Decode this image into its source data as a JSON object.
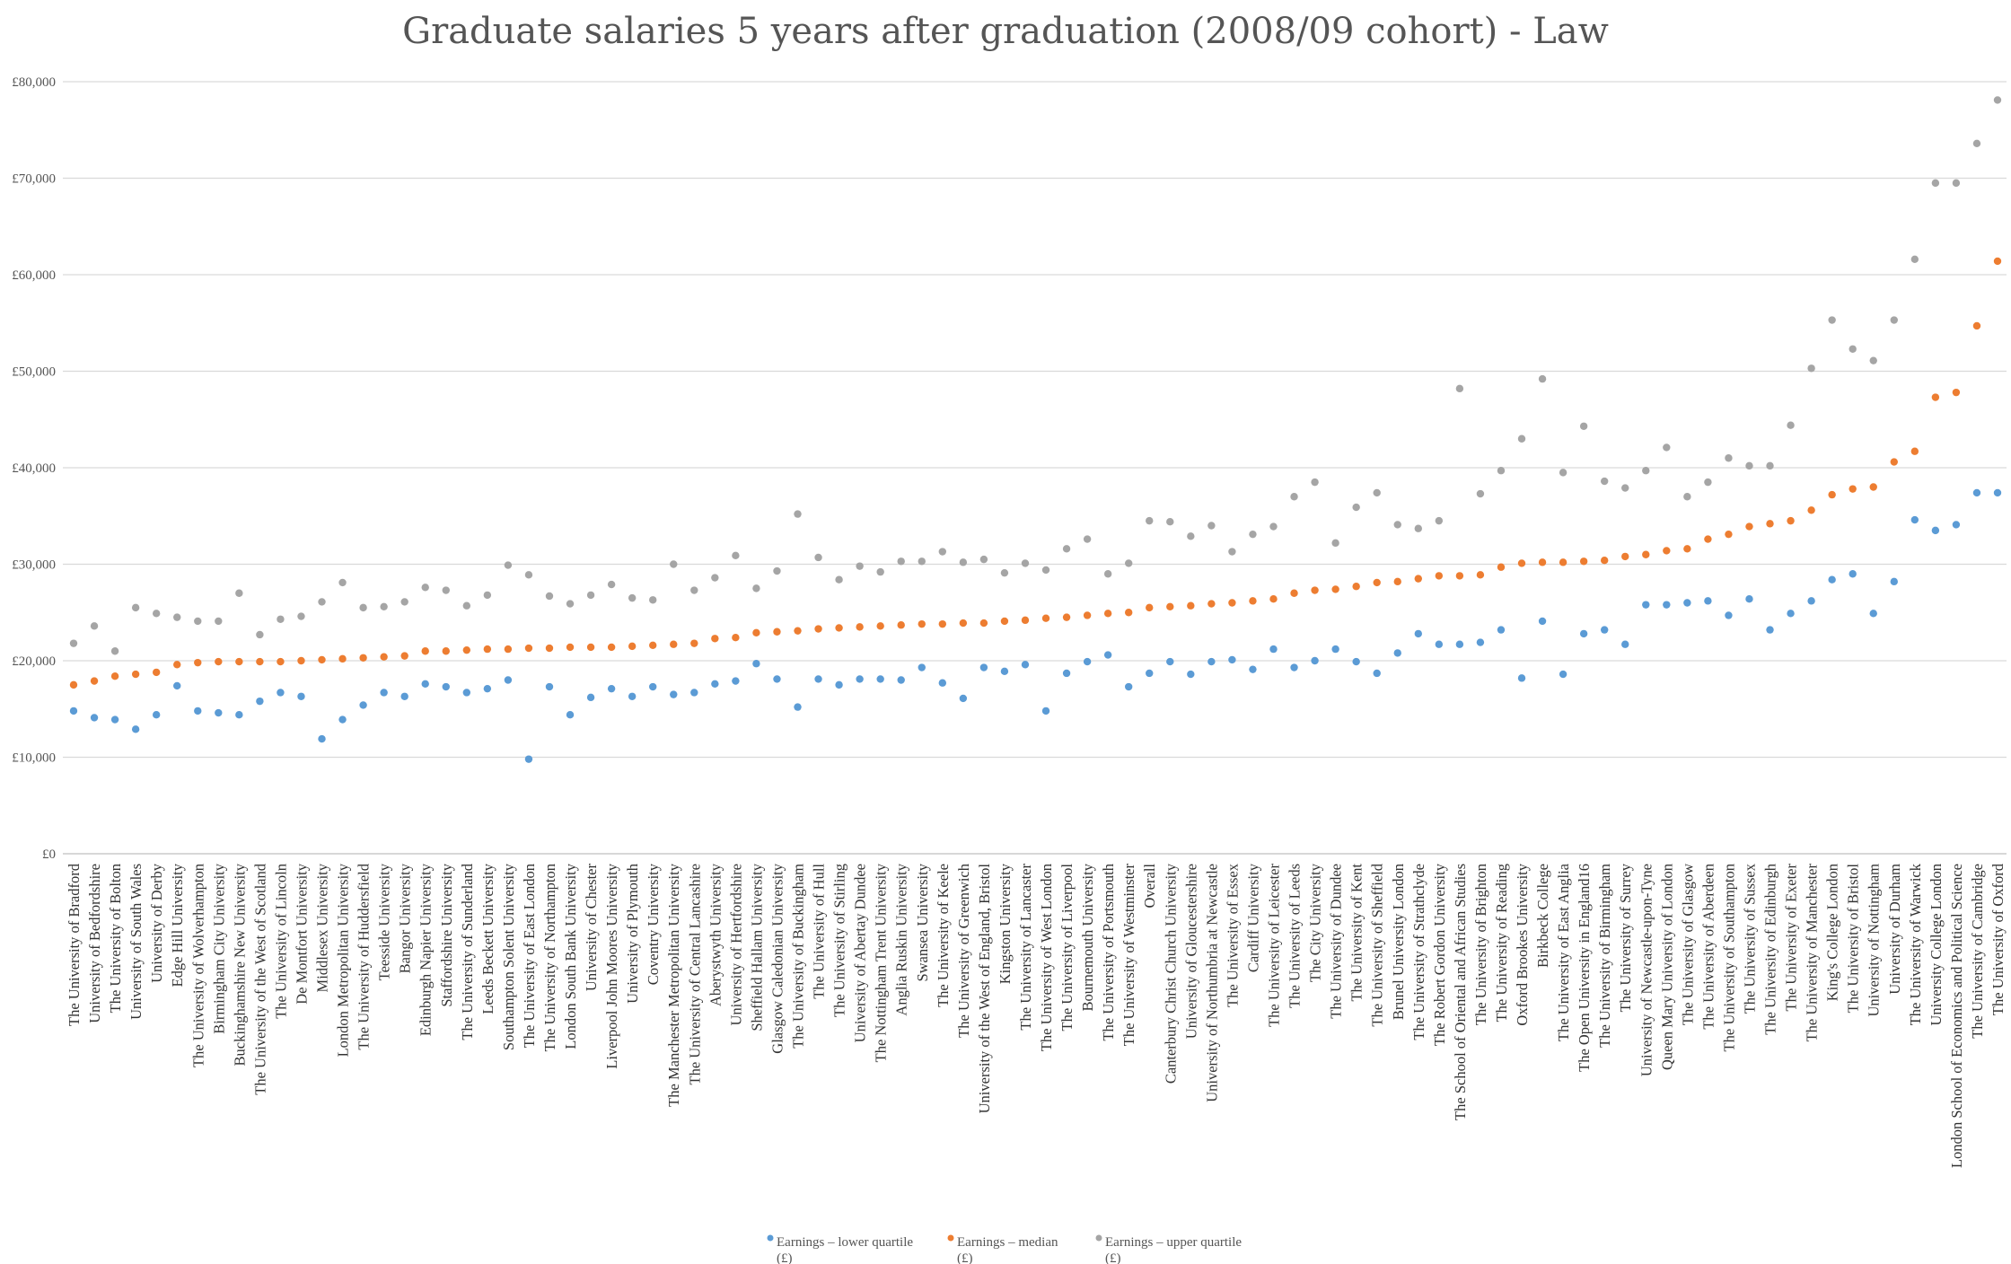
{
  "chart_data": {
    "type": "scatter",
    "title": "Graduate salaries 5 years after graduation (2008/09 cohort) - Law",
    "xlabel": "",
    "ylabel": "",
    "ylim": [
      0,
      80000
    ],
    "yticks": [
      0,
      10000,
      20000,
      30000,
      40000,
      50000,
      60000,
      70000,
      80000
    ],
    "ytick_labels": [
      "£0",
      "£10,000",
      "£20,000",
      "£30,000",
      "£40,000",
      "£50,000",
      "£60,000",
      "£70,000",
      "£80,000"
    ],
    "grid": true,
    "legend_position": "bottom",
    "categories": [
      "The University of Bradford",
      "University of Bedfordshire",
      "The University of Bolton",
      "University of South Wales",
      "University of Derby",
      "Edge Hill University",
      "The University of Wolverhampton",
      "Birmingham City University",
      "Buckinghamshire New University",
      "The University of the West of Scotland",
      "The University of Lincoln",
      "De Montfort University",
      "Middlesex University",
      "London Metropolitan University",
      "The University of Huddersfield",
      "Teesside University",
      "Bangor University",
      "Edinburgh Napier University",
      "Staffordshire University",
      "The University of Sunderland",
      "Leeds Beckett University",
      "Southampton Solent University",
      "The University of East London",
      "The University of Northampton",
      "London South Bank University",
      "University of Chester",
      "Liverpool John Moores University",
      "University of Plymouth",
      "Coventry University",
      "The Manchester Metropolitan University",
      "The University of Central Lancashire",
      "Aberystwyth University",
      "University of Hertfordshire",
      "Sheffield Hallam University",
      "Glasgow Caledonian University",
      "The University of Buckingham",
      "The University of Hull",
      "The University of Stirling",
      "University of Abertay Dundee",
      "The Nottingham Trent University",
      "Anglia Ruskin University",
      "Swansea University",
      "The University of Keele",
      "The University of Greenwich",
      "University of the West of England, Bristol",
      "Kingston University",
      "The University of Lancaster",
      "The University of West London",
      "The University of Liverpool",
      "Bournemouth University",
      "The University of Portsmouth",
      "The University of Westminster",
      "Overall",
      "Canterbury Christ Church University",
      "University of Gloucestershire",
      "University of Northumbria at Newcastle",
      "The University of Essex",
      "Cardiff University",
      "The University of Leicester",
      "The University of Leeds",
      "The City University",
      "The University of Dundee",
      "The University of Kent",
      "The University of Sheffield",
      "Brunel University London",
      "The University of Strathclyde",
      "The Robert Gordon University",
      "The School of Oriental and African Studies",
      "The University of Brighton",
      "The University of Reading",
      "Oxford Brookes University",
      "Birkbeck College",
      "The University of East Anglia",
      "The Open University in England16",
      "The University of Birmingham",
      "The University of Surrey",
      "University of Newcastle-upon-Tyne",
      "Queen Mary University of London",
      "The University of Glasgow",
      "The University of Aberdeen",
      "The University of Southampton",
      "The University of Sussex",
      "The University of Edinburgh",
      "The University of Exeter",
      "The University of Manchester",
      "King's College London",
      "The University of Bristol",
      "University of Nottingham",
      "University of Durham",
      "The University of Warwick",
      "University College London",
      "London School of Economics and Political Science",
      "The University of Cambridge",
      "The University of Oxford"
    ],
    "series": [
      {
        "name": "Earnings – lower quartile (£)",
        "color": "#5b9bd5",
        "values": [
          14800,
          14100,
          13900,
          12900,
          14400,
          17400,
          14800,
          14600,
          14400,
          15800,
          16700,
          16300,
          11900,
          13900,
          15400,
          16700,
          16300,
          17600,
          17300,
          16700,
          17100,
          18000,
          9800,
          17300,
          14400,
          16200,
          17100,
          16300,
          17300,
          16500,
          16700,
          17600,
          17900,
          19700,
          18100,
          15200,
          18100,
          17500,
          18100,
          18100,
          18000,
          19300,
          17700,
          16100,
          19300,
          18900,
          19600,
          14800,
          18700,
          19900,
          20600,
          17300,
          18700,
          19900,
          18600,
          19900,
          20100,
          19100,
          21200,
          19300,
          20000,
          21200,
          19900,
          18700,
          20800,
          22800,
          21700,
          21700,
          21900,
          23200,
          18200,
          24100,
          18600,
          22800,
          23200,
          21700,
          25800,
          25800,
          26000,
          26200,
          24700,
          26400,
          23200,
          24900,
          26200,
          28400,
          29000,
          24900,
          28200,
          34600,
          33500,
          34100,
          37400,
          37400
        ]
      },
      {
        "name": "Earnings – median (£)",
        "color": "#ed7d31",
        "values": [
          17500,
          17900,
          18400,
          18600,
          18800,
          19600,
          19800,
          19900,
          19900,
          19900,
          19900,
          20000,
          20100,
          20200,
          20300,
          20400,
          20500,
          21000,
          21000,
          21100,
          21200,
          21200,
          21300,
          21300,
          21400,
          21400,
          21400,
          21500,
          21600,
          21700,
          21800,
          22300,
          22400,
          22900,
          23000,
          23100,
          23300,
          23400,
          23500,
          23600,
          23700,
          23800,
          23800,
          23900,
          23900,
          24100,
          24200,
          24400,
          24500,
          24700,
          24900,
          25000,
          25500,
          25600,
          25700,
          25900,
          26000,
          26200,
          26400,
          27000,
          27300,
          27400,
          27700,
          28100,
          28200,
          28500,
          28800,
          28800,
          28900,
          29700,
          30100,
          30200,
          30200,
          30300,
          30400,
          30800,
          31000,
          31400,
          31600,
          32600,
          33100,
          33900,
          34200,
          34500,
          35600,
          37200,
          37800,
          38000,
          40600,
          41700,
          47300,
          47800,
          54700,
          61400
        ]
      },
      {
        "name": "Earnings – upper quartile (£)",
        "color": "#a5a5a5",
        "values": [
          21800,
          23600,
          21000,
          25500,
          24900,
          24500,
          24100,
          24100,
          27000,
          22700,
          24300,
          24600,
          26100,
          28100,
          25500,
          25600,
          26100,
          27600,
          27300,
          25700,
          26800,
          29900,
          28900,
          26700,
          25900,
          26800,
          27900,
          26500,
          26300,
          30000,
          27300,
          28600,
          30900,
          27500,
          29300,
          35200,
          30700,
          28400,
          29800,
          29200,
          30300,
          30300,
          31300,
          30200,
          30500,
          29100,
          30100,
          29400,
          31600,
          32600,
          29000,
          30100,
          34500,
          34400,
          32900,
          34000,
          31300,
          33100,
          33900,
          37000,
          38500,
          32200,
          35900,
          37400,
          34100,
          33700,
          34500,
          48200,
          37300,
          39700,
          43000,
          49200,
          39500,
          44300,
          38600,
          37900,
          39700,
          42100,
          37000,
          38500,
          41000,
          40200,
          40200,
          44400,
          50300,
          55300,
          52300,
          51100,
          55300,
          61600,
          69500,
          69500,
          73600,
          78100
        ]
      }
    ]
  }
}
